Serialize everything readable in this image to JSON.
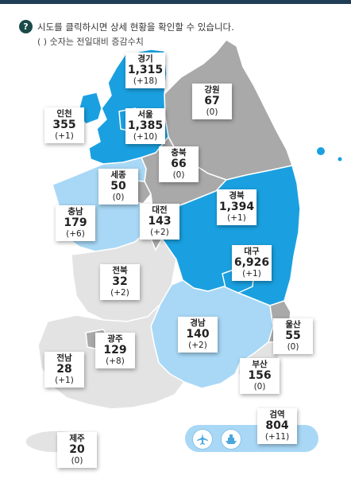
{
  "colors": {
    "high": "#1aa0e0",
    "mid": "#a8d8f6",
    "low": "#e3e3e3",
    "none": "#a9a9a9",
    "header": "#1f3d55"
  },
  "hint": {
    "icon": "?",
    "line1": "시도를 클릭하시면 상세 현황을 확인할 수 있습니다.",
    "line2": "( ) 숫자는 전일대비 증감수치"
  },
  "regions": {
    "gyeonggi": {
      "name": "경기",
      "count": "1,315",
      "diff": "(+18)"
    },
    "seoul": {
      "name": "서울",
      "count": "1,385",
      "diff": "(+10)"
    },
    "gangwon": {
      "name": "강원",
      "count": "67",
      "diff": "(0)"
    },
    "incheon": {
      "name": "인천",
      "count": "355",
      "diff": "(+1)"
    },
    "chungbuk": {
      "name": "충북",
      "count": "66",
      "diff": "(0)"
    },
    "sejong": {
      "name": "세종",
      "count": "50",
      "diff": "(0)"
    },
    "chungnam": {
      "name": "충남",
      "count": "179",
      "diff": "(+6)"
    },
    "daejeon": {
      "name": "대전",
      "count": "143",
      "diff": "(+2)"
    },
    "gyeongbuk": {
      "name": "경북",
      "count": "1,394",
      "diff": "(+1)"
    },
    "daegu": {
      "name": "대구",
      "count": "6,926",
      "diff": "(+1)"
    },
    "jeonbuk": {
      "name": "전북",
      "count": "32",
      "diff": "(+2)"
    },
    "gyeongnam": {
      "name": "경남",
      "count": "140",
      "diff": "(+2)"
    },
    "ulsan": {
      "name": "울산",
      "count": "55",
      "diff": "(0)"
    },
    "gwangju": {
      "name": "광주",
      "count": "129",
      "diff": "(+8)"
    },
    "jeonnam": {
      "name": "전남",
      "count": "28",
      "diff": "(+1)"
    },
    "busan": {
      "name": "부산",
      "count": "156",
      "diff": "(0)"
    },
    "jeju": {
      "name": "제주",
      "count": "20",
      "diff": "(0)"
    }
  },
  "quarantine": {
    "name": "검역",
    "count": "804",
    "diff": "(+11)",
    "icons": [
      "airplane-icon",
      "ship-icon"
    ]
  }
}
